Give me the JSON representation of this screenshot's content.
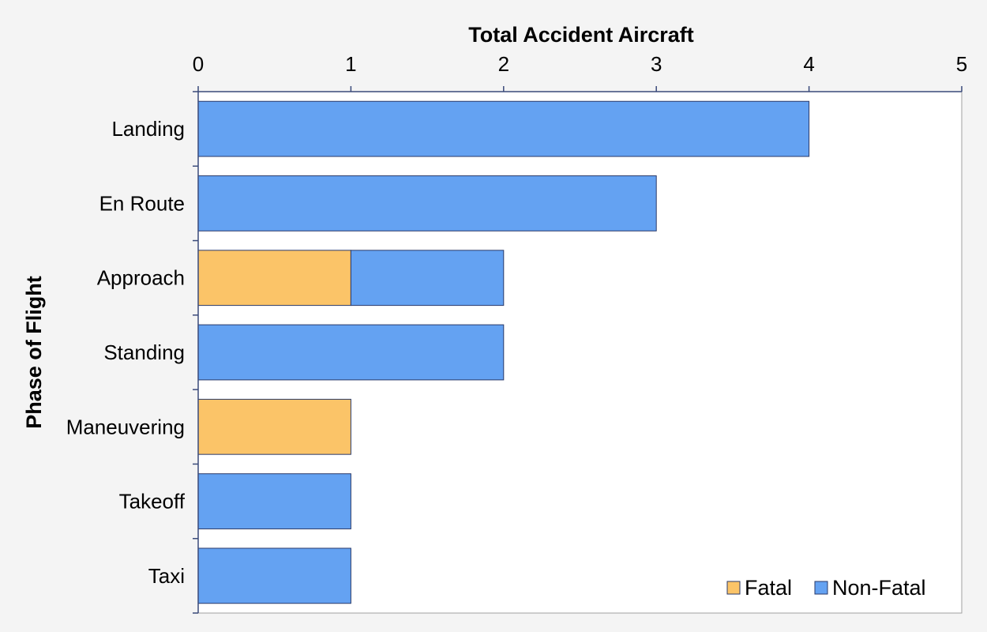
{
  "chart_data": {
    "type": "bar",
    "orientation": "horizontal",
    "stacked": true,
    "title": "Total Accident Aircraft",
    "xlabel": "Total Accident Aircraft",
    "ylabel": "Phase of Flight",
    "xlim": [
      0,
      5
    ],
    "xticks": [
      "0",
      "1",
      "2",
      "3",
      "4",
      "5"
    ],
    "categories": [
      "Landing",
      "En Route",
      "Approach",
      "Standing",
      "Maneuvering",
      "Takeoff",
      "Taxi"
    ],
    "series": [
      {
        "name": "Fatal",
        "color": "#fbc468",
        "values": [
          0,
          0,
          1,
          0,
          1,
          0,
          0
        ]
      },
      {
        "name": "Non-Fatal",
        "color": "#64a2f2",
        "values": [
          4,
          3,
          1,
          2,
          0,
          1,
          1
        ]
      }
    ],
    "grid": false,
    "legend_position": "bottom-right"
  }
}
